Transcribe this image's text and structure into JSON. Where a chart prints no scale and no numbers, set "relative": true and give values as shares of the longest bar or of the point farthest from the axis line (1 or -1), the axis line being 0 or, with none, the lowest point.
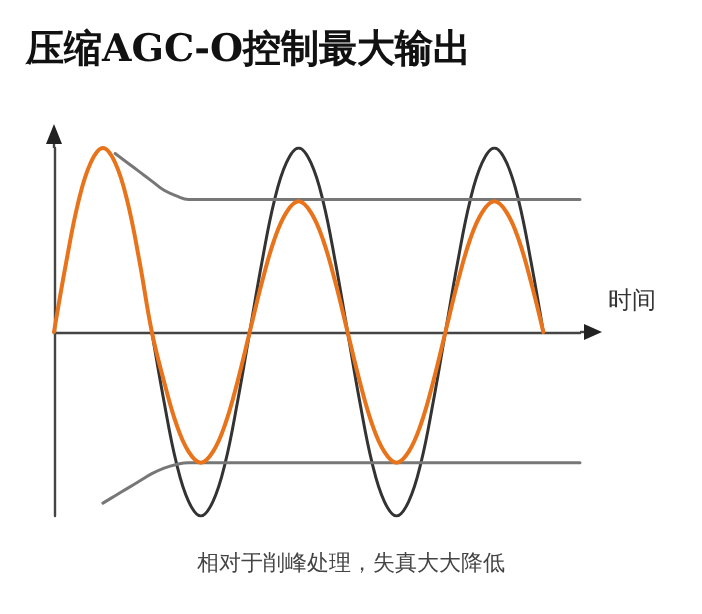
{
  "chart_data": {
    "type": "line",
    "title": "压缩AGC-O控制最大输出",
    "xlabel": "时间",
    "relative": true,
    "line_style": "solid",
    "grid": false,
    "annotations": [
      "相对于削峰处理，失真大大降低"
    ],
    "categories": [
      null,
      null,
      null,
      null,
      null,
      null,
      null,
      null,
      null,
      null,
      null,
      null,
      null,
      null,
      null,
      null,
      null,
      null,
      null,
      null,
      null,
      null,
      null,
      null,
      null,
      null,
      null,
      null,
      null,
      null,
      null,
      null,
      null,
      null,
      null,
      null,
      null,
      null,
      null,
      null,
      null,
      null,
      null,
      null
    ],
    "series": [
      {
        "color": "#333333",
        "values": [
          null,
          null,
          null,
          null,
          null,
          null,
          null,
          null,
          0,
          -0.38,
          -0.71,
          -0.92,
          -1,
          -0.92,
          -0.71,
          -0.38,
          0,
          0.38,
          0.71,
          0.92,
          1,
          0.92,
          0.71,
          0.38,
          0,
          -0.38,
          -0.71,
          -0.92,
          -1,
          -0.92,
          -0.71,
          -0.38,
          0,
          0.38,
          0.71,
          0.92,
          1,
          0.92,
          0.71,
          0.38,
          0,
          null,
          null,
          null
        ]
      },
      {
        "color": "#777777",
        "values": [
          null,
          null,
          null,
          null,
          null,
          0.97,
          0.92,
          0.87,
          0.82,
          0.77,
          0.74,
          0.72,
          0.72,
          0.72,
          0.72,
          0.72,
          0.72,
          0.72,
          0.72,
          0.72,
          0.72,
          0.72,
          0.72,
          0.72,
          0.72,
          0.72,
          0.72,
          0.72,
          0.72,
          0.72,
          0.72,
          0.72,
          0.72,
          0.72,
          0.72,
          0.72,
          0.72,
          0.72,
          0.72,
          0.72,
          0.72,
          0.72,
          0.72,
          0.72
        ]
      },
      {
        "color": "#777777",
        "values": [
          null,
          null,
          null,
          null,
          -0.93,
          -0.89,
          -0.85,
          -0.81,
          -0.77,
          -0.74,
          -0.72,
          -0.71,
          -0.71,
          -0.71,
          -0.71,
          -0.71,
          -0.71,
          -0.71,
          -0.71,
          -0.71,
          -0.71,
          -0.71,
          -0.71,
          -0.71,
          -0.71,
          -0.71,
          -0.71,
          -0.71,
          -0.71,
          -0.71,
          -0.71,
          -0.71,
          -0.71,
          -0.71,
          -0.71,
          -0.71,
          -0.71,
          -0.71,
          -0.71,
          -0.71,
          -0.71,
          -0.71,
          -0.71,
          -0.71
        ]
      },
      {
        "color": "#e8731a",
        "values": [
          0,
          0.38,
          0.71,
          0.92,
          1,
          0.92,
          0.71,
          0.38,
          0,
          -0.27,
          -0.5,
          -0.65,
          -0.71,
          -0.65,
          -0.5,
          -0.27,
          0,
          0.27,
          0.5,
          0.65,
          0.71,
          0.65,
          0.5,
          0.27,
          0,
          -0.27,
          -0.5,
          -0.65,
          -0.71,
          -0.65,
          -0.5,
          -0.27,
          0,
          0.27,
          0.5,
          0.65,
          0.71,
          0.65,
          0.5,
          0.27,
          0,
          null,
          null,
          null
        ]
      }
    ]
  }
}
